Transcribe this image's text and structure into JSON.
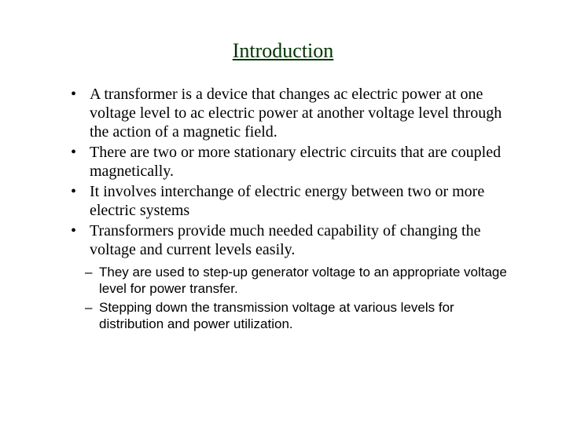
{
  "title": "Introduction",
  "bullets": [
    "A transformer is a device that changes ac electric power at one voltage level to ac electric power at another voltage level through the action of a magnetic field.",
    "There are two or more stationary electric circuits that are coupled magnetically.",
    "It involves interchange of electric energy between two or more electric systems",
    "Transformers provide much needed capability of changing the voltage and current levels easily."
  ],
  "sub_bullets": [
    "They are used to step-up generator voltage to an appropriate voltage level for power transfer.",
    "Stepping down the transmission voltage at various levels for distribution and power utilization."
  ],
  "colors": {
    "title_color": "#003300",
    "text_color": "#000000",
    "background": "#ffffff"
  },
  "typography": {
    "title_fontsize": 26,
    "body_fontsize": 20,
    "sub_fontsize": 17,
    "title_font": "Times New Roman",
    "body_font": "Times New Roman",
    "sub_font": "Arial"
  }
}
